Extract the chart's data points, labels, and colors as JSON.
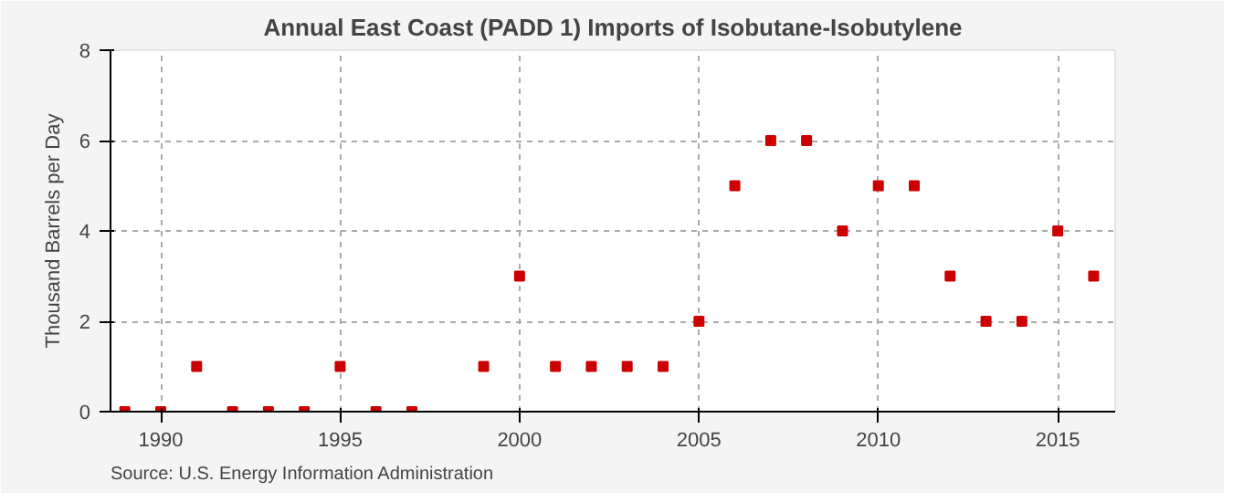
{
  "chart_data": {
    "type": "scatter",
    "title": "Annual East Coast (PADD 1) Imports of Isobutane-Isobutylene",
    "ylabel": "Thousand Barrels per Day",
    "x": [
      1989,
      1990,
      1991,
      1992,
      1993,
      1994,
      1995,
      1996,
      1997,
      1999,
      2000,
      2001,
      2002,
      2003,
      2004,
      2005,
      2006,
      2007,
      2008,
      2009,
      2010,
      2011,
      2012,
      2013,
      2014,
      2015,
      2016
    ],
    "series": [
      {
        "color": "#cc0000",
        "values": [
          0,
          0,
          1,
          0,
          0,
          0,
          1,
          0,
          0,
          1,
          3,
          1,
          1,
          1,
          1,
          2,
          5,
          6,
          6,
          4,
          5,
          5,
          3,
          2,
          2,
          4,
          3
        ]
      }
    ],
    "xlim": [
      1988.6,
      2016.6
    ],
    "xticks": [
      1990,
      1995,
      2000,
      2005,
      2010,
      2015
    ],
    "ylim": [
      0,
      8
    ],
    "yticks": [
      0,
      2,
      4,
      6,
      8
    ],
    "grid": true,
    "marker": "square",
    "annotations": [
      "Source: U.S. Energy Information Administration"
    ]
  }
}
